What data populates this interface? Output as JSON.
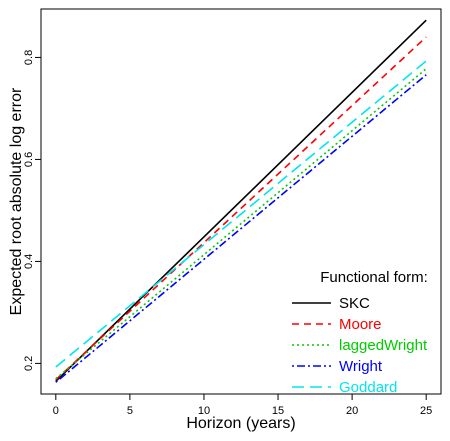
{
  "chart_data": {
    "type": "line",
    "xlabel": "Horizon (years)",
    "ylabel": "Expected root absolute log error",
    "xlim": [
      -1,
      26
    ],
    "ylim": [
      0.14,
      0.895
    ],
    "xticks": [
      0,
      5,
      10,
      15,
      20,
      25
    ],
    "yticks": [
      0.2,
      0.4,
      0.6,
      0.8
    ],
    "xtick_labels": [
      "0",
      "5",
      "10",
      "15",
      "20",
      "25"
    ],
    "ytick_labels": [
      "0.2",
      "0.4",
      "0.6",
      "0.8"
    ],
    "legend": {
      "title": "Functional form:",
      "placement": "bottom-right"
    },
    "series": [
      {
        "name": "SKC",
        "color": "#000000",
        "dash": "solid",
        "x": [
          0,
          25
        ],
        "y": [
          0.165,
          0.873
        ]
      },
      {
        "name": "Moore",
        "color": "#ff0000",
        "dash": "dashed",
        "x": [
          0,
          25
        ],
        "y": [
          0.168,
          0.84
        ]
      },
      {
        "name": "laggedWright",
        "color": "#00cc00",
        "dash": "dotted",
        "x": [
          0,
          25
        ],
        "y": [
          0.17,
          0.778
        ]
      },
      {
        "name": "Wright",
        "color": "#0000ff",
        "dash": "dotdash",
        "x": [
          0,
          25
        ],
        "y": [
          0.163,
          0.766
        ]
      },
      {
        "name": "Goddard",
        "color": "#00e5ee",
        "dash": "longdash",
        "x": [
          0,
          25
        ],
        "y": [
          0.193,
          0.793
        ]
      }
    ]
  }
}
